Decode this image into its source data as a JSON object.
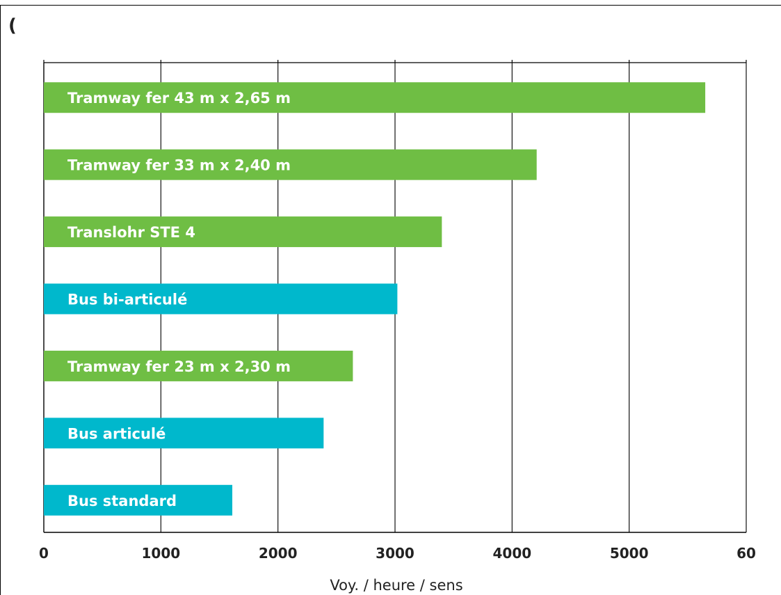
{
  "corner_mark": "(",
  "chart_data": {
    "type": "bar",
    "orientation": "horizontal",
    "title": "",
    "xlabel": "Voy. / heure / sens",
    "ylabel": "",
    "xlim": [
      0,
      6000
    ],
    "x_tick_labels": [
      "0",
      "1000",
      "2000",
      "3000",
      "4000",
      "5000",
      "60"
    ],
    "grid": true,
    "categories": [
      "Tramway fer 43 m x 2,65 m",
      "Tramway fer 33 m x 2,40 m",
      "Translohr STE 4",
      "Bus bi-articulé",
      "Tramway fer 23 m x 2,30 m",
      "Bus articulé",
      "Bus standard"
    ],
    "values": [
      5650,
      4210,
      3400,
      3020,
      2640,
      2390,
      1610
    ],
    "bar_colors": [
      "#6fbe44",
      "#6fbe44",
      "#6fbe44",
      "#00b8cc",
      "#6fbe44",
      "#00b8cc",
      "#00b8cc"
    ]
  }
}
